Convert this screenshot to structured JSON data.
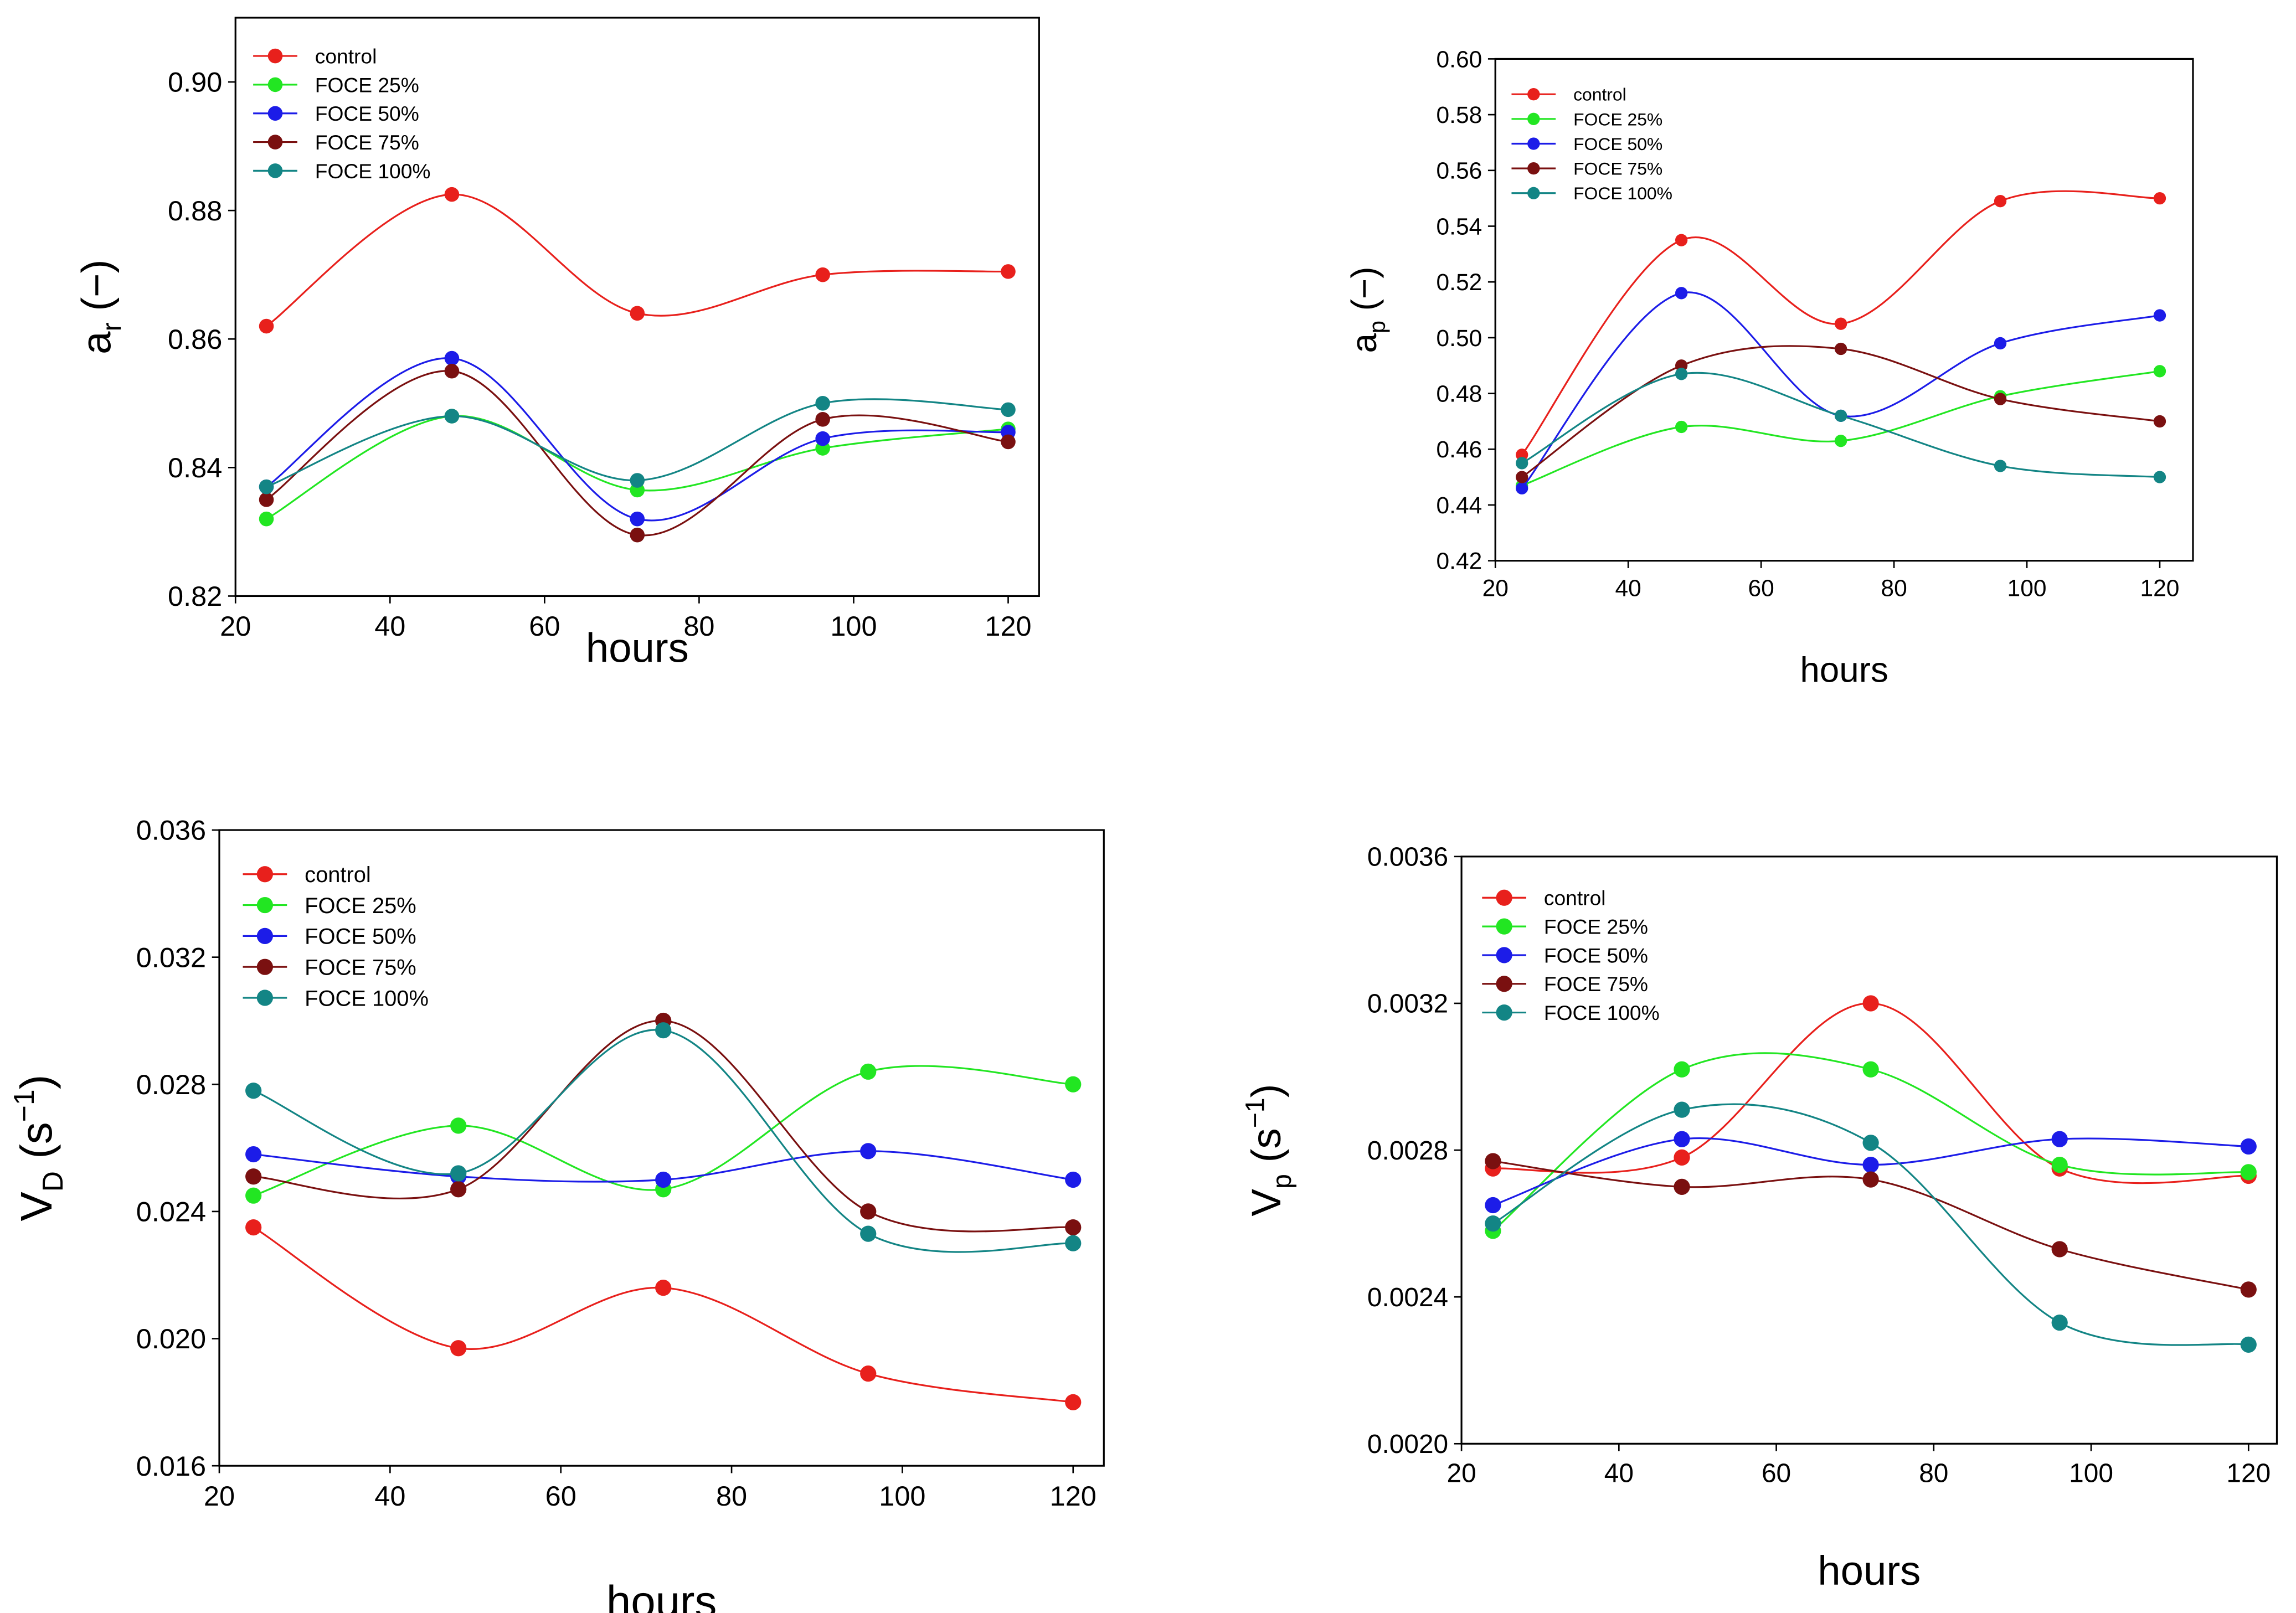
{
  "series_colors": {
    "control": "#e8201c",
    "FOCE 25%": "#22e622",
    "FOCE 50%": "#1c1ce8",
    "FOCE 75%": "#7a1010",
    "FOCE 100%": "#138585"
  },
  "chart_data": [
    {
      "type": "line",
      "xlabel": "hours",
      "ylabel": {
        "base": "a",
        "sub": "r",
        "unit": " (−)"
      },
      "xlim": [
        20,
        124
      ],
      "ylim": [
        0.82,
        0.91
      ],
      "xticks": [
        20,
        40,
        60,
        80,
        100,
        120
      ],
      "yticks": [
        0.82,
        0.84,
        0.86,
        0.88,
        0.9
      ],
      "ydec": 2,
      "legend": "top-left",
      "x": [
        24,
        48,
        72,
        96,
        120
      ],
      "series": [
        {
          "name": "control",
          "values": [
            0.862,
            0.8825,
            0.864,
            0.87,
            0.8705
          ]
        },
        {
          "name": "FOCE 25%",
          "values": [
            0.832,
            0.848,
            0.8365,
            0.843,
            0.846
          ]
        },
        {
          "name": "FOCE 50%",
          "values": [
            0.837,
            0.857,
            0.832,
            0.8445,
            0.8455
          ]
        },
        {
          "name": "FOCE 75%",
          "values": [
            0.835,
            0.855,
            0.8295,
            0.8475,
            0.844
          ]
        },
        {
          "name": "FOCE 100%",
          "values": [
            0.837,
            0.848,
            0.838,
            0.85,
            0.849
          ]
        }
      ]
    },
    {
      "type": "line",
      "xlabel": "hours",
      "ylabel": {
        "base": "a",
        "sub": "p",
        "unit": " (−)"
      },
      "xlim": [
        20,
        125
      ],
      "ylim": [
        0.42,
        0.6
      ],
      "xticks": [
        20,
        40,
        60,
        80,
        100,
        120
      ],
      "yticks": [
        0.42,
        0.44,
        0.46,
        0.48,
        0.5,
        0.52,
        0.54,
        0.56,
        0.58,
        0.6
      ],
      "ydec": 2,
      "legend": "top-left",
      "x": [
        24,
        48,
        72,
        96,
        120
      ],
      "series": [
        {
          "name": "control",
          "values": [
            0.458,
            0.535,
            0.505,
            0.549,
            0.55
          ]
        },
        {
          "name": "FOCE 25%",
          "values": [
            0.447,
            0.468,
            0.463,
            0.479,
            0.488
          ]
        },
        {
          "name": "FOCE 50%",
          "values": [
            0.446,
            0.516,
            0.472,
            0.498,
            0.508
          ]
        },
        {
          "name": "FOCE 75%",
          "values": [
            0.45,
            0.49,
            0.496,
            0.478,
            0.47
          ]
        },
        {
          "name": "FOCE 100%",
          "values": [
            0.455,
            0.487,
            0.472,
            0.454,
            0.45
          ]
        }
      ]
    },
    {
      "type": "line",
      "xlabel": "hours",
      "ylabel": {
        "base": "V",
        "sub": "D",
        "unit": " (s",
        "sup": "−1",
        "end": ")"
      },
      "xlim": [
        20,
        123.6
      ],
      "ylim": [
        0.016,
        0.036
      ],
      "xticks": [
        20,
        40,
        60,
        80,
        100,
        120
      ],
      "yticks": [
        0.016,
        0.02,
        0.024,
        0.028,
        0.032,
        0.036
      ],
      "ydec": 3,
      "legend": "top-left",
      "x": [
        24,
        48,
        72,
        96,
        120
      ],
      "series": [
        {
          "name": "control",
          "values": [
            0.0235,
            0.0197,
            0.0216,
            0.0189,
            0.018
          ]
        },
        {
          "name": "FOCE 25%",
          "values": [
            0.0245,
            0.0267,
            0.0247,
            0.0284,
            0.028
          ]
        },
        {
          "name": "FOCE 50%",
          "values": [
            0.0258,
            0.0251,
            0.025,
            0.0259,
            0.025
          ]
        },
        {
          "name": "FOCE 75%",
          "values": [
            0.0251,
            0.0247,
            0.03,
            0.024,
            0.0235
          ]
        },
        {
          "name": "FOCE 100%",
          "values": [
            0.0278,
            0.0252,
            0.0297,
            0.0233,
            0.023
          ]
        }
      ]
    },
    {
      "type": "line",
      "xlabel": "hours",
      "ylabel": {
        "base": "V",
        "sub": "p",
        "unit": " (s",
        "sup": "−1",
        "end": ")"
      },
      "xlim": [
        20,
        123.6
      ],
      "ylim": [
        0.002,
        0.0036
      ],
      "xticks": [
        20,
        40,
        60,
        80,
        100,
        120
      ],
      "yticks": [
        0.002,
        0.0024,
        0.0028,
        0.0032,
        0.0036
      ],
      "ydec": 4,
      "legend": "top-left",
      "x": [
        24,
        48,
        72,
        96,
        120
      ],
      "series": [
        {
          "name": "control",
          "values": [
            0.00275,
            0.00278,
            0.0032,
            0.00275,
            0.00273
          ]
        },
        {
          "name": "FOCE 25%",
          "values": [
            0.00258,
            0.00302,
            0.00302,
            0.00276,
            0.00274
          ]
        },
        {
          "name": "FOCE 50%",
          "values": [
            0.00265,
            0.00283,
            0.00276,
            0.00283,
            0.00281
          ]
        },
        {
          "name": "FOCE 75%",
          "values": [
            0.00277,
            0.0027,
            0.00272,
            0.00253,
            0.00242
          ]
        },
        {
          "name": "FOCE 100%",
          "values": [
            0.0026,
            0.00291,
            0.00282,
            0.00233,
            0.00227
          ]
        }
      ]
    }
  ]
}
